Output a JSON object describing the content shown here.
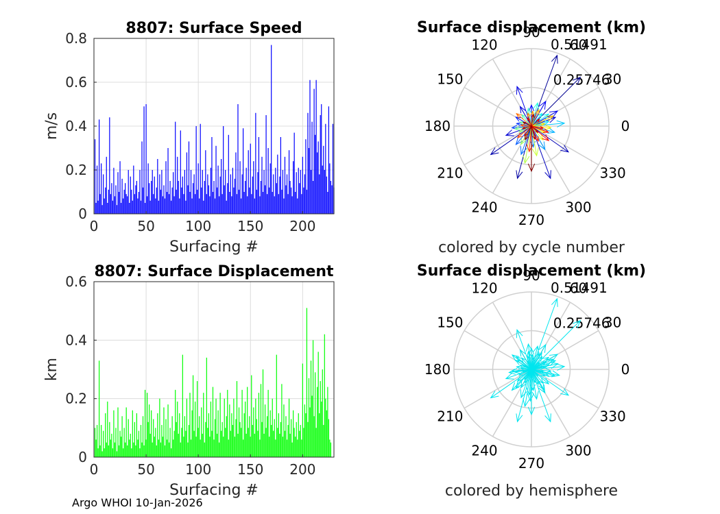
{
  "footer": "Argo WHOI 10-Jan-2026",
  "chart_data": [
    {
      "type": "bar",
      "title": "8807: Surface Speed",
      "xlabel": "Surfacing #",
      "ylabel": "m/s",
      "xlim": [
        0,
        230
      ],
      "ylim": [
        0,
        0.8
      ],
      "xticks": [
        "0",
        "50",
        "100",
        "150",
        "200"
      ],
      "yticks": [
        "0",
        "0.2",
        "0.4",
        "0.6",
        "0.8"
      ],
      "grid": true,
      "color": "#0000ff",
      "x_count": 230,
      "values": [
        0.34,
        0.05,
        0.22,
        0.06,
        0.43,
        0.09,
        0.23,
        0.04,
        0.18,
        0.07,
        0.12,
        0.26,
        0.05,
        0.11,
        0.44,
        0.09,
        0.14,
        0.06,
        0.21,
        0.08,
        0.13,
        0.04,
        0.19,
        0.1,
        0.24,
        0.05,
        0.16,
        0.07,
        0.11,
        0.14,
        0.09,
        0.08,
        0.2,
        0.05,
        0.17,
        0.11,
        0.06,
        0.22,
        0.09,
        0.13,
        0.15,
        0.07,
        0.1,
        0.2,
        0.06,
        0.33,
        0.12,
        0.49,
        0.05,
        0.5,
        0.08,
        0.23,
        0.14,
        0.06,
        0.15,
        0.2,
        0.09,
        0.17,
        0.07,
        0.12,
        0.25,
        0.06,
        0.18,
        0.11,
        0.2,
        0.08,
        0.13,
        0.07,
        0.24,
        0.1,
        0.3,
        0.09,
        0.15,
        0.06,
        0.12,
        0.19,
        0.08,
        0.42,
        0.11,
        0.26,
        0.15,
        0.07,
        0.38,
        0.12,
        0.17,
        0.09,
        0.2,
        0.06,
        0.28,
        0.13,
        0.33,
        0.1,
        0.2,
        0.07,
        0.14,
        0.18,
        0.09,
        0.4,
        0.11,
        0.23,
        0.07,
        0.41,
        0.12,
        0.2,
        0.06,
        0.15,
        0.29,
        0.09,
        0.18,
        0.13,
        0.08,
        0.21,
        0.35,
        0.1,
        0.15,
        0.07,
        0.31,
        0.12,
        0.22,
        0.08,
        0.17,
        0.25,
        0.09,
        0.4,
        0.13,
        0.2,
        0.06,
        0.14,
        0.36,
        0.1,
        0.18,
        0.08,
        0.21,
        0.12,
        0.16,
        0.28,
        0.09,
        0.5,
        0.11,
        0.24,
        0.07,
        0.18,
        0.39,
        0.1,
        0.15,
        0.21,
        0.08,
        0.29,
        0.12,
        0.32,
        0.09,
        0.17,
        0.24,
        0.07,
        0.46,
        0.11,
        0.19,
        0.35,
        0.08,
        0.15,
        0.26,
        0.1,
        0.2,
        0.13,
        0.45,
        0.09,
        0.3,
        0.12,
        0.23,
        0.77,
        0.1,
        0.18,
        0.08,
        0.21,
        0.14,
        0.27,
        0.09,
        0.17,
        0.35,
        0.11,
        0.2,
        0.07,
        0.26,
        0.13,
        0.18,
        0.09,
        0.29,
        0.15,
        0.12,
        0.08,
        0.24,
        0.37,
        0.1,
        0.19,
        0.07,
        0.21,
        0.14,
        0.2,
        0.09,
        0.26,
        0.12,
        0.18,
        0.34,
        0.11,
        0.46,
        0.3,
        0.61,
        0.2,
        0.42,
        0.15,
        0.57,
        0.36,
        0.61,
        0.28,
        0.33,
        0.18,
        0.45,
        0.5,
        0.22,
        0.31,
        0.2,
        0.41,
        0.17,
        0.1,
        0.49,
        0.23,
        0.15,
        0.13,
        0.41,
        0.12
      ]
    },
    {
      "type": "polar",
      "title": "Surface displacement (km)",
      "caption": "colored by cycle number",
      "r_tick_labels": [
        "0.25746",
        "0.51491"
      ],
      "theta_labels": [
        "0",
        "30",
        "60",
        "90",
        "120",
        "150",
        "180",
        "210",
        "240",
        "270",
        "300",
        "330"
      ],
      "rmax": 0.51491,
      "colormap": [
        "#00008f",
        "#0000ff",
        "#00ffff",
        "#ffff00",
        "#ff0000",
        "#800000"
      ],
      "vectors": [
        [
          45,
          0.46
        ],
        [
          70,
          0.5
        ],
        [
          255,
          0.36
        ],
        [
          215,
          0.33
        ],
        [
          325,
          0.3
        ],
        [
          290,
          0.37
        ],
        [
          20,
          0.17
        ],
        [
          200,
          0.18
        ],
        [
          120,
          0.15
        ],
        [
          110,
          0.28
        ],
        [
          30,
          0.2
        ],
        [
          60,
          0.19
        ],
        [
          90,
          0.14
        ],
        [
          150,
          0.12
        ],
        [
          170,
          0.1
        ],
        [
          185,
          0.13
        ],
        [
          230,
          0.16
        ],
        [
          250,
          0.2
        ],
        [
          275,
          0.14
        ],
        [
          300,
          0.18
        ],
        [
          345,
          0.16
        ],
        [
          5,
          0.22
        ],
        [
          15,
          0.12
        ],
        [
          35,
          0.14
        ],
        [
          50,
          0.11
        ],
        [
          75,
          0.16
        ],
        [
          100,
          0.12
        ],
        [
          130,
          0.1
        ],
        [
          160,
          0.08
        ],
        [
          190,
          0.11
        ],
        [
          205,
          0.09
        ],
        [
          240,
          0.14
        ],
        [
          260,
          0.25
        ],
        [
          280,
          0.2
        ],
        [
          310,
          0.12
        ],
        [
          335,
          0.1
        ],
        [
          355,
          0.13
        ],
        [
          10,
          0.09
        ],
        [
          25,
          0.16
        ],
        [
          65,
          0.12
        ],
        [
          85,
          0.1
        ],
        [
          105,
          0.09
        ],
        [
          140,
          0.13
        ],
        [
          175,
          0.07
        ],
        [
          220,
          0.12
        ],
        [
          265,
          0.17
        ],
        [
          295,
          0.11
        ],
        [
          320,
          0.15
        ],
        [
          340,
          0.12
        ],
        [
          350,
          0.08
        ],
        [
          40,
          0.07
        ],
        [
          115,
          0.06
        ],
        [
          195,
          0.06
        ],
        [
          235,
          0.08
        ],
        [
          285,
          0.09
        ],
        [
          315,
          0.06
        ],
        [
          80,
          0.08
        ],
        [
          155,
          0.06
        ],
        [
          245,
          0.1
        ],
        [
          270,
          0.3
        ]
      ]
    },
    {
      "type": "bar",
      "title": "8807: Surface Displacement",
      "xlabel": "Surfacing #",
      "ylabel": "km",
      "xlim": [
        0,
        230
      ],
      "ylim": [
        0,
        0.6
      ],
      "xticks": [
        "0",
        "50",
        "100",
        "150",
        "200"
      ],
      "yticks": [
        "0",
        "0.2",
        "0.4",
        "0.6"
      ],
      "grid": true,
      "color": "#00ff00",
      "x_count": 230,
      "values": [
        0.1,
        0.06,
        0.11,
        0.03,
        0.33,
        0.04,
        0.11,
        0.02,
        0.09,
        0.03,
        0.15,
        0.05,
        0.19,
        0.04,
        0.12,
        0.06,
        0.08,
        0.03,
        0.16,
        0.05,
        0.1,
        0.02,
        0.17,
        0.04,
        0.09,
        0.07,
        0.14,
        0.03,
        0.1,
        0.05,
        0.17,
        0.04,
        0.13,
        0.06,
        0.08,
        0.03,
        0.16,
        0.05,
        0.12,
        0.04,
        0.15,
        0.06,
        0.09,
        0.03,
        0.11,
        0.05,
        0.14,
        0.04,
        0.23,
        0.06,
        0.22,
        0.12,
        0.18,
        0.08,
        0.16,
        0.05,
        0.13,
        0.07,
        0.1,
        0.04,
        0.15,
        0.06,
        0.2,
        0.05,
        0.11,
        0.07,
        0.17,
        0.04,
        0.13,
        0.06,
        0.18,
        0.05,
        0.1,
        0.03,
        0.14,
        0.06,
        0.09,
        0.23,
        0.12,
        0.19,
        0.08,
        0.15,
        0.05,
        0.1,
        0.35,
        0.07,
        0.14,
        0.09,
        0.2,
        0.05,
        0.11,
        0.22,
        0.06,
        0.16,
        0.28,
        0.09,
        0.19,
        0.07,
        0.26,
        0.1,
        0.14,
        0.06,
        0.17,
        0.08,
        0.22,
        0.05,
        0.12,
        0.34,
        0.1,
        0.15,
        0.07,
        0.19,
        0.09,
        0.24,
        0.06,
        0.13,
        0.2,
        0.08,
        0.16,
        0.05,
        0.22,
        0.09,
        0.12,
        0.07,
        0.2,
        0.1,
        0.14,
        0.23,
        0.06,
        0.18,
        0.09,
        0.15,
        0.11,
        0.2,
        0.07,
        0.13,
        0.26,
        0.08,
        0.17,
        0.12,
        0.1,
        0.23,
        0.06,
        0.15,
        0.19,
        0.08,
        0.24,
        0.1,
        0.14,
        0.07,
        0.28,
        0.11,
        0.17,
        0.08,
        0.2,
        0.13,
        0.09,
        0.22,
        0.06,
        0.25,
        0.12,
        0.3,
        0.08,
        0.18,
        0.1,
        0.14,
        0.23,
        0.07,
        0.16,
        0.11,
        0.2,
        0.09,
        0.13,
        0.06,
        0.35,
        0.1,
        0.15,
        0.08,
        0.12,
        0.25,
        0.07,
        0.18,
        0.09,
        0.14,
        0.06,
        0.11,
        0.2,
        0.08,
        0.13,
        0.05,
        0.16,
        0.1,
        0.07,
        0.12,
        0.06,
        0.15,
        0.09,
        0.11,
        0.06,
        0.32,
        0.1,
        0.18,
        0.15,
        0.51,
        0.12,
        0.27,
        0.17,
        0.33,
        0.21,
        0.4,
        0.14,
        0.29,
        0.1,
        0.24,
        0.36,
        0.15,
        0.26,
        0.19,
        0.3,
        0.11,
        0.42,
        0.2,
        0.16,
        0.24,
        0.13,
        0.06,
        0.05
      ]
    },
    {
      "type": "polar",
      "title": "Surface displacement (km)",
      "caption": "colored by hemisphere",
      "r_tick_labels": [
        "0.25746",
        "0.51491"
      ],
      "theta_labels": [
        "0",
        "30",
        "60",
        "90",
        "120",
        "150",
        "180",
        "210",
        "240",
        "270",
        "300",
        "330"
      ],
      "rmax": 0.51491,
      "color": "#00e5ee",
      "vectors": [
        [
          45,
          0.46
        ],
        [
          70,
          0.5
        ],
        [
          255,
          0.36
        ],
        [
          215,
          0.33
        ],
        [
          325,
          0.3
        ],
        [
          290,
          0.37
        ],
        [
          20,
          0.17
        ],
        [
          200,
          0.18
        ],
        [
          120,
          0.15
        ],
        [
          110,
          0.28
        ],
        [
          30,
          0.2
        ],
        [
          60,
          0.19
        ],
        [
          90,
          0.14
        ],
        [
          150,
          0.12
        ],
        [
          170,
          0.1
        ],
        [
          185,
          0.13
        ],
        [
          230,
          0.16
        ],
        [
          250,
          0.2
        ],
        [
          275,
          0.14
        ],
        [
          300,
          0.18
        ],
        [
          345,
          0.16
        ],
        [
          5,
          0.22
        ],
        [
          15,
          0.12
        ],
        [
          35,
          0.14
        ],
        [
          50,
          0.11
        ],
        [
          75,
          0.16
        ],
        [
          100,
          0.12
        ],
        [
          130,
          0.1
        ],
        [
          160,
          0.08
        ],
        [
          190,
          0.11
        ],
        [
          205,
          0.09
        ],
        [
          240,
          0.14
        ],
        [
          260,
          0.25
        ],
        [
          280,
          0.2
        ],
        [
          310,
          0.12
        ],
        [
          335,
          0.1
        ],
        [
          355,
          0.13
        ],
        [
          10,
          0.09
        ],
        [
          25,
          0.16
        ],
        [
          65,
          0.12
        ],
        [
          85,
          0.1
        ],
        [
          105,
          0.09
        ],
        [
          140,
          0.13
        ],
        [
          175,
          0.07
        ],
        [
          220,
          0.12
        ],
        [
          265,
          0.17
        ],
        [
          295,
          0.11
        ],
        [
          320,
          0.15
        ],
        [
          340,
          0.12
        ],
        [
          350,
          0.08
        ],
        [
          40,
          0.07
        ],
        [
          115,
          0.06
        ],
        [
          195,
          0.06
        ],
        [
          235,
          0.08
        ],
        [
          285,
          0.09
        ],
        [
          315,
          0.06
        ],
        [
          80,
          0.08
        ],
        [
          155,
          0.06
        ],
        [
          245,
          0.1
        ],
        [
          270,
          0.3
        ],
        [
          12,
          0.18
        ],
        [
          58,
          0.13
        ],
        [
          97,
          0.17
        ],
        [
          143,
          0.16
        ],
        [
          188,
          0.15
        ],
        [
          227,
          0.19
        ],
        [
          268,
          0.21
        ],
        [
          302,
          0.16
        ],
        [
          348,
          0.19
        ],
        [
          28,
          0.11
        ]
      ]
    }
  ]
}
